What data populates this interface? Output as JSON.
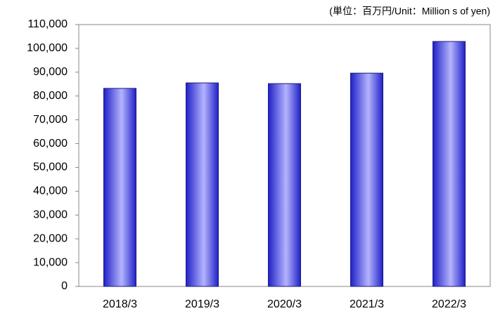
{
  "chart_data": {
    "type": "bar",
    "subtitle": "(単位：百万円/Unit：Million s  of yen)",
    "categories": [
      "2018/3",
      "2019/3",
      "2020/3",
      "2021/3",
      "2022/3"
    ],
    "values": [
      83200,
      85500,
      85200,
      89600,
      102900
    ],
    "color": "#5a5af0",
    "ylim": [
      0,
      110000
    ],
    "yticks": [
      0,
      {
        "value": 10000,
        "label": "10,000"
      },
      {
        "value": 20000,
        "label": "20,000"
      },
      {
        "value": 30000,
        "label": "30,000"
      },
      {
        "value": 40000,
        "label": "40,000"
      },
      {
        "value": 50000,
        "label": "50,000"
      },
      {
        "value": 60000,
        "label": "60,000"
      },
      {
        "value": 70000,
        "label": "70,000"
      },
      {
        "value": 80000,
        "label": "80,000"
      },
      {
        "value": 90000,
        "label": "90,000"
      },
      {
        "value": 100000,
        "label": "100,000"
      },
      {
        "value": 110000,
        "label": "110,000"
      }
    ],
    "grid": false
  }
}
